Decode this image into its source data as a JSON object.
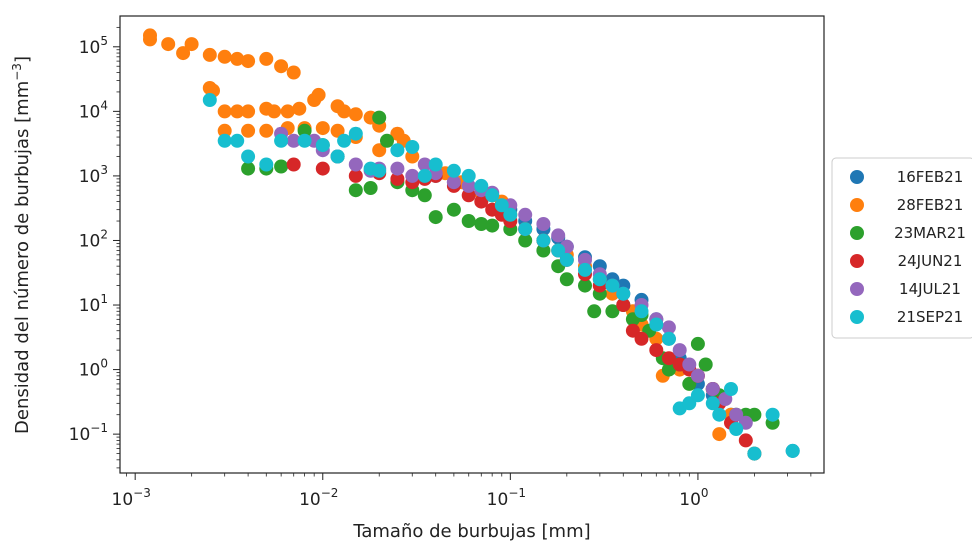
{
  "chart_data": {
    "type": "scatter",
    "xlabel": "Tamaño de burbujas [mm]",
    "ylabel": "Densidad del número de burbujas [mm",
    "ylabel_unit_exp": "−3",
    "ylabel_close": "]",
    "xscale": "log",
    "yscale": "log",
    "xlim": [
      0.00083,
      4.7
    ],
    "ylim": [
      0.025,
      300000
    ],
    "x_ticks": [
      {
        "value": 0.001,
        "base": "10",
        "exp": "−3"
      },
      {
        "value": 0.01,
        "base": "10",
        "exp": "−2"
      },
      {
        "value": 0.1,
        "base": "10",
        "exp": "−1"
      },
      {
        "value": 1,
        "base": "10",
        "exp": "0"
      }
    ],
    "y_ticks": [
      {
        "value": 0.1,
        "base": "10",
        "exp": "−1"
      },
      {
        "value": 1,
        "base": "10",
        "exp": "0"
      },
      {
        "value": 10,
        "base": "10",
        "exp": "1"
      },
      {
        "value": 100,
        "base": "10",
        "exp": "2"
      },
      {
        "value": 1000,
        "base": "10",
        "exp": "3"
      },
      {
        "value": 10000,
        "base": "10",
        "exp": "4"
      },
      {
        "value": 100000,
        "base": "10",
        "exp": "5"
      }
    ],
    "grid": false,
    "legend_position": "outside-right",
    "series": [
      {
        "name": "16FEB21",
        "color": "#1f77b4",
        "points": [
          [
            0.04,
            1000
          ],
          [
            0.05,
            800
          ],
          [
            0.06,
            700
          ],
          [
            0.07,
            600
          ],
          [
            0.08,
            500
          ],
          [
            0.1,
            300
          ],
          [
            0.12,
            200
          ],
          [
            0.15,
            150
          ],
          [
            0.18,
            110
          ],
          [
            0.2,
            80
          ],
          [
            0.25,
            55
          ],
          [
            0.3,
            40
          ],
          [
            0.35,
            25
          ],
          [
            0.4,
            20
          ],
          [
            0.5,
            12
          ],
          [
            0.6,
            6
          ],
          [
            0.7,
            3
          ],
          [
            0.8,
            1.5
          ],
          [
            1.0,
            0.6
          ],
          [
            1.2,
            0.4
          ],
          [
            1.5,
            0.2
          ],
          [
            2.0,
            0.05
          ],
          [
            3.2,
            0.055
          ]
        ]
      },
      {
        "name": "28FEB21",
        "color": "#ff7f0e",
        "points": [
          [
            0.0012,
            130000
          ],
          [
            0.0012,
            150000
          ],
          [
            0.0015,
            110000
          ],
          [
            0.0018,
            80000
          ],
          [
            0.002,
            110000
          ],
          [
            0.0025,
            75000
          ],
          [
            0.003,
            70000
          ],
          [
            0.0035,
            65000
          ],
          [
            0.004,
            60000
          ],
          [
            0.005,
            65000
          ],
          [
            0.006,
            50000
          ],
          [
            0.007,
            40000
          ],
          [
            0.0025,
            23000
          ],
          [
            0.0026,
            21000
          ],
          [
            0.003,
            10000
          ],
          [
            0.0035,
            10000
          ],
          [
            0.004,
            10000
          ],
          [
            0.005,
            11000
          ],
          [
            0.0055,
            10000
          ],
          [
            0.0065,
            10000
          ],
          [
            0.0075,
            11000
          ],
          [
            0.009,
            15000
          ],
          [
            0.0095,
            18000
          ],
          [
            0.012,
            12000
          ],
          [
            0.013,
            10000
          ],
          [
            0.015,
            9000
          ],
          [
            0.018,
            8000
          ],
          [
            0.02,
            6000
          ],
          [
            0.025,
            4500
          ],
          [
            0.027,
            3500
          ],
          [
            0.003,
            5000
          ],
          [
            0.004,
            5000
          ],
          [
            0.005,
            5000
          ],
          [
            0.0065,
            5500
          ],
          [
            0.008,
            5500
          ],
          [
            0.01,
            5500
          ],
          [
            0.012,
            5000
          ],
          [
            0.015,
            4000
          ],
          [
            0.02,
            2500
          ],
          [
            0.03,
            2000
          ],
          [
            0.045,
            1100
          ],
          [
            0.055,
            800
          ],
          [
            0.07,
            550
          ],
          [
            0.08,
            500
          ],
          [
            0.09,
            400
          ],
          [
            0.1,
            250
          ],
          [
            0.12,
            150
          ],
          [
            0.15,
            100
          ],
          [
            0.2,
            60
          ],
          [
            0.25,
            40
          ],
          [
            0.3,
            25
          ],
          [
            0.35,
            15
          ],
          [
            0.45,
            8
          ],
          [
            0.5,
            5
          ],
          [
            0.6,
            3
          ],
          [
            0.65,
            0.8
          ],
          [
            0.8,
            1
          ],
          [
            1.0,
            0.8
          ],
          [
            1.2,
            0.5
          ],
          [
            1.3,
            0.1
          ],
          [
            1.5,
            0.2
          ],
          [
            2.0,
            0.05
          ]
        ]
      },
      {
        "name": "23MAR21",
        "color": "#2ca02c",
        "points": [
          [
            0.004,
            1300
          ],
          [
            0.005,
            1300
          ],
          [
            0.006,
            1400
          ],
          [
            0.008,
            5000
          ],
          [
            0.01,
            3000
          ],
          [
            0.012,
            2000
          ],
          [
            0.015,
            600
          ],
          [
            0.018,
            650
          ],
          [
            0.02,
            8000
          ],
          [
            0.022,
            3500
          ],
          [
            0.025,
            800
          ],
          [
            0.03,
            600
          ],
          [
            0.035,
            500
          ],
          [
            0.04,
            230
          ],
          [
            0.05,
            300
          ],
          [
            0.06,
            200
          ],
          [
            0.07,
            180
          ],
          [
            0.08,
            170
          ],
          [
            0.1,
            150
          ],
          [
            0.12,
            100
          ],
          [
            0.15,
            70
          ],
          [
            0.18,
            40
          ],
          [
            0.2,
            25
          ],
          [
            0.25,
            20
          ],
          [
            0.28,
            8
          ],
          [
            0.3,
            15
          ],
          [
            0.35,
            8
          ],
          [
            0.4,
            10
          ],
          [
            0.45,
            6
          ],
          [
            0.5,
            7
          ],
          [
            0.55,
            4
          ],
          [
            0.65,
            1.5
          ],
          [
            0.7,
            1
          ],
          [
            0.8,
            1.2
          ],
          [
            0.9,
            0.6
          ],
          [
            1.0,
            2.5
          ],
          [
            1.1,
            1.2
          ],
          [
            1.2,
            0.5
          ],
          [
            1.3,
            0.4
          ],
          [
            1.6,
            0.2
          ],
          [
            1.8,
            0.2
          ],
          [
            2.0,
            0.2
          ],
          [
            2.5,
            0.15
          ]
        ]
      },
      {
        "name": "24JUN21",
        "color": "#d62728",
        "points": [
          [
            0.007,
            1500
          ],
          [
            0.01,
            1300
          ],
          [
            0.015,
            1000
          ],
          [
            0.02,
            1100
          ],
          [
            0.025,
            900
          ],
          [
            0.03,
            800
          ],
          [
            0.035,
            900
          ],
          [
            0.04,
            1000
          ],
          [
            0.05,
            700
          ],
          [
            0.06,
            500
          ],
          [
            0.07,
            400
          ],
          [
            0.08,
            300
          ],
          [
            0.09,
            250
          ],
          [
            0.1,
            200
          ],
          [
            0.12,
            150
          ],
          [
            0.15,
            100
          ],
          [
            0.18,
            70
          ],
          [
            0.2,
            50
          ],
          [
            0.25,
            30
          ],
          [
            0.3,
            20
          ],
          [
            0.4,
            10
          ],
          [
            0.45,
            4
          ],
          [
            0.5,
            3
          ],
          [
            0.6,
            2
          ],
          [
            0.7,
            1.5
          ],
          [
            0.8,
            1.2
          ],
          [
            0.9,
            1
          ],
          [
            1.0,
            0.8
          ],
          [
            1.2,
            0.5
          ],
          [
            1.3,
            0.3
          ],
          [
            1.5,
            0.15
          ],
          [
            1.8,
            0.08
          ]
        ]
      },
      {
        "name": "14JUL21",
        "color": "#9467bd",
        "points": [
          [
            0.006,
            4500
          ],
          [
            0.007,
            3500
          ],
          [
            0.009,
            3500
          ],
          [
            0.01,
            2500
          ],
          [
            0.012,
            2000
          ],
          [
            0.015,
            1500
          ],
          [
            0.018,
            1200
          ],
          [
            0.02,
            1300
          ],
          [
            0.025,
            1300
          ],
          [
            0.03,
            1000
          ],
          [
            0.035,
            1500
          ],
          [
            0.04,
            1100
          ],
          [
            0.05,
            800
          ],
          [
            0.06,
            700
          ],
          [
            0.07,
            600
          ],
          [
            0.08,
            550
          ],
          [
            0.1,
            350
          ],
          [
            0.12,
            250
          ],
          [
            0.15,
            180
          ],
          [
            0.18,
            120
          ],
          [
            0.2,
            80
          ],
          [
            0.25,
            50
          ],
          [
            0.3,
            30
          ],
          [
            0.35,
            20
          ],
          [
            0.4,
            15
          ],
          [
            0.5,
            10
          ],
          [
            0.6,
            6
          ],
          [
            0.7,
            4.5
          ],
          [
            0.8,
            2
          ],
          [
            0.9,
            1.2
          ],
          [
            1.0,
            0.8
          ],
          [
            1.2,
            0.5
          ],
          [
            1.4,
            0.35
          ],
          [
            1.6,
            0.2
          ],
          [
            1.8,
            0.15
          ]
        ]
      },
      {
        "name": "21SEP21",
        "color": "#17becf",
        "points": [
          [
            0.0025,
            15000
          ],
          [
            0.003,
            3500
          ],
          [
            0.0035,
            3500
          ],
          [
            0.004,
            2000
          ],
          [
            0.005,
            1500
          ],
          [
            0.006,
            3500
          ],
          [
            0.008,
            3500
          ],
          [
            0.01,
            3000
          ],
          [
            0.012,
            2000
          ],
          [
            0.013,
            3500
          ],
          [
            0.015,
            4500
          ],
          [
            0.018,
            1300
          ],
          [
            0.02,
            1200
          ],
          [
            0.025,
            2500
          ],
          [
            0.03,
            2800
          ],
          [
            0.035,
            1000
          ],
          [
            0.04,
            1500
          ],
          [
            0.05,
            1200
          ],
          [
            0.06,
            1000
          ],
          [
            0.07,
            700
          ],
          [
            0.08,
            500
          ],
          [
            0.09,
            350
          ],
          [
            0.1,
            250
          ],
          [
            0.12,
            150
          ],
          [
            0.15,
            100
          ],
          [
            0.18,
            70
          ],
          [
            0.2,
            50
          ],
          [
            0.25,
            35
          ],
          [
            0.3,
            25
          ],
          [
            0.35,
            20
          ],
          [
            0.4,
            15
          ],
          [
            0.5,
            8
          ],
          [
            0.6,
            5
          ],
          [
            0.7,
            3
          ],
          [
            0.8,
            0.25
          ],
          [
            0.9,
            0.3
          ],
          [
            1.0,
            0.4
          ],
          [
            1.2,
            0.3
          ],
          [
            1.3,
            0.2
          ],
          [
            1.5,
            0.5
          ],
          [
            1.6,
            0.12
          ],
          [
            2.0,
            0.05
          ],
          [
            2.5,
            0.2
          ],
          [
            3.2,
            0.055
          ]
        ]
      }
    ]
  }
}
